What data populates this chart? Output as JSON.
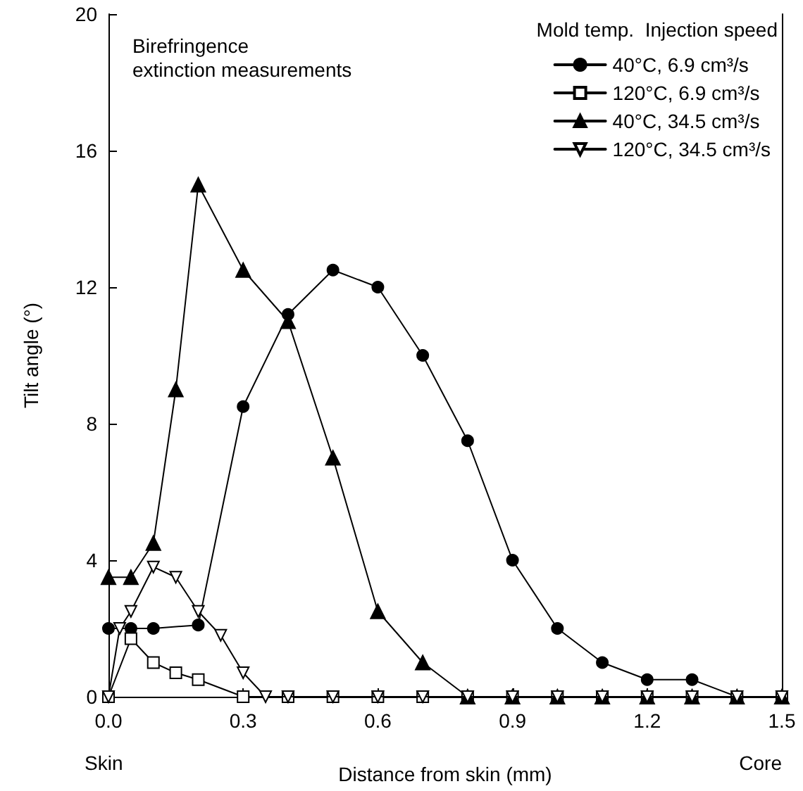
{
  "chart_data": {
    "type": "line",
    "xlabel": "Distance from skin (mm)",
    "ylabel": "Tilt angle (°)",
    "legend_title": "Mold temp.  Injection speed",
    "annotations": [
      "Birefringence\nextinction measurements",
      "Skin",
      "Core"
    ],
    "xlim": [
      0,
      1.5
    ],
    "xticks": [
      {
        "value": 0,
        "label": "0.0"
      },
      {
        "value": 0.3,
        "label": "0.3"
      },
      {
        "value": 0.6,
        "label": "0.6"
      },
      {
        "value": 0.9,
        "label": "0.9"
      },
      {
        "value": 1.2,
        "label": "1.2"
      },
      {
        "value": 1.5,
        "label": "1.5"
      }
    ],
    "ylim": [
      0,
      20
    ],
    "yticks": [
      0,
      4,
      8,
      12,
      16,
      20
    ],
    "grid": false,
    "legend": "top right",
    "series": [
      {
        "name": "40°C, 6.9 cm³/s",
        "color": "#000000",
        "marker": "circle",
        "x": [
          0,
          0.05,
          0.1,
          0.2,
          0.3,
          0.4,
          0.5,
          0.6,
          0.7,
          0.8,
          0.9,
          1.0,
          1.1,
          1.2,
          1.3,
          1.4,
          1.5
        ],
        "values": [
          2,
          2,
          2,
          2.1,
          8.5,
          11.2,
          12.5,
          12,
          10,
          7.5,
          4,
          2,
          1,
          0.5,
          0.5,
          0,
          0
        ]
      },
      {
        "name": "120°C, 6.9 cm³/s",
        "color": "#000000",
        "marker": "square-open",
        "x": [
          0,
          0.05,
          0.1,
          0.15,
          0.2,
          0.3,
          0.4,
          0.5,
          0.6,
          0.7,
          0.8,
          0.9,
          1.0,
          1.1,
          1.2,
          1.3,
          1.4,
          1.5
        ],
        "values": [
          0,
          1.7,
          1.0,
          0.7,
          0.5,
          0,
          0,
          0,
          0,
          0,
          0,
          0,
          0,
          0,
          0,
          0,
          0,
          0
        ]
      },
      {
        "name": "40°C, 34.5 cm³/s",
        "color": "#000000",
        "marker": "triangle",
        "x": [
          0,
          0.05,
          0.1,
          0.15,
          0.2,
          0.3,
          0.4,
          0.5,
          0.6,
          0.7,
          0.8,
          0.9,
          1.0,
          1.1,
          1.2,
          1.3,
          1.4,
          1.5
        ],
        "values": [
          3.5,
          3.5,
          4.5,
          9,
          15,
          12.5,
          11,
          7,
          2.5,
          1,
          0,
          0,
          0,
          0,
          0,
          0,
          0,
          0
        ]
      },
      {
        "name": "120°C, 34.5 cm³/s",
        "color": "#000000",
        "marker": "triangle-down-open",
        "x": [
          0,
          0.025,
          0.05,
          0.1,
          0.15,
          0.2,
          0.25,
          0.3,
          0.35,
          0.4,
          0.5,
          0.6,
          0.7,
          0.8,
          0.9,
          1.0,
          1.1,
          1.2,
          1.3,
          1.4,
          1.5
        ],
        "values": [
          0,
          2.0,
          2.5,
          3.8,
          3.5,
          2.5,
          1.8,
          0.7,
          0,
          0,
          0,
          0,
          0,
          0,
          0,
          0,
          0,
          0,
          0,
          0,
          0
        ]
      }
    ]
  }
}
